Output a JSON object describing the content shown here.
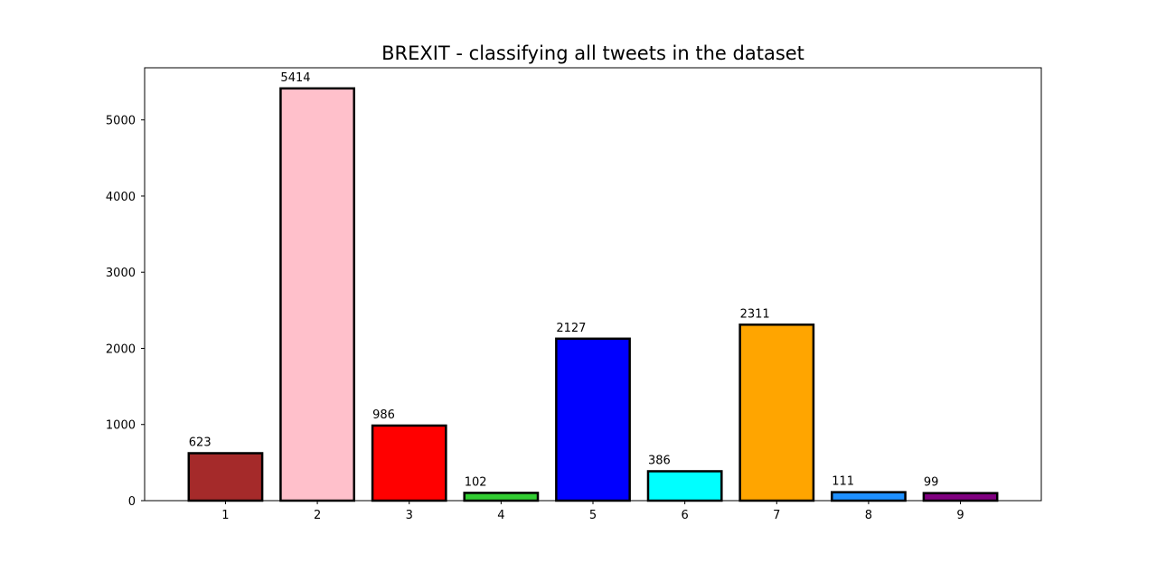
{
  "chart_data": {
    "type": "bar",
    "title": "BREXIT - classifying all tweets in the dataset",
    "xlabel": "",
    "ylabel": "",
    "categories": [
      "1",
      "2",
      "3",
      "4",
      "5",
      "6",
      "7",
      "8",
      "9"
    ],
    "values": [
      623,
      5414,
      986,
      102,
      2127,
      386,
      2311,
      111,
      99
    ],
    "data_labels": [
      "623",
      "5414",
      "986",
      "102",
      "2127",
      "386",
      "2311",
      "111",
      "99"
    ],
    "colors": [
      "#a52a2a",
      "#ffc0cb",
      "#ff0000",
      "#32cd32",
      "#0000ff",
      "#00ffff",
      "#ffa500",
      "#1e90ff",
      "#800080"
    ],
    "bar_edge_color": "#000000",
    "y_ticks": [
      0,
      1000,
      2000,
      3000,
      4000,
      5000
    ],
    "y_tick_labels": [
      "0",
      "1000",
      "2000",
      "3000",
      "4000",
      "5000"
    ],
    "ylim": [
      0,
      5684.7
    ],
    "grid": false,
    "legend": "none"
  }
}
